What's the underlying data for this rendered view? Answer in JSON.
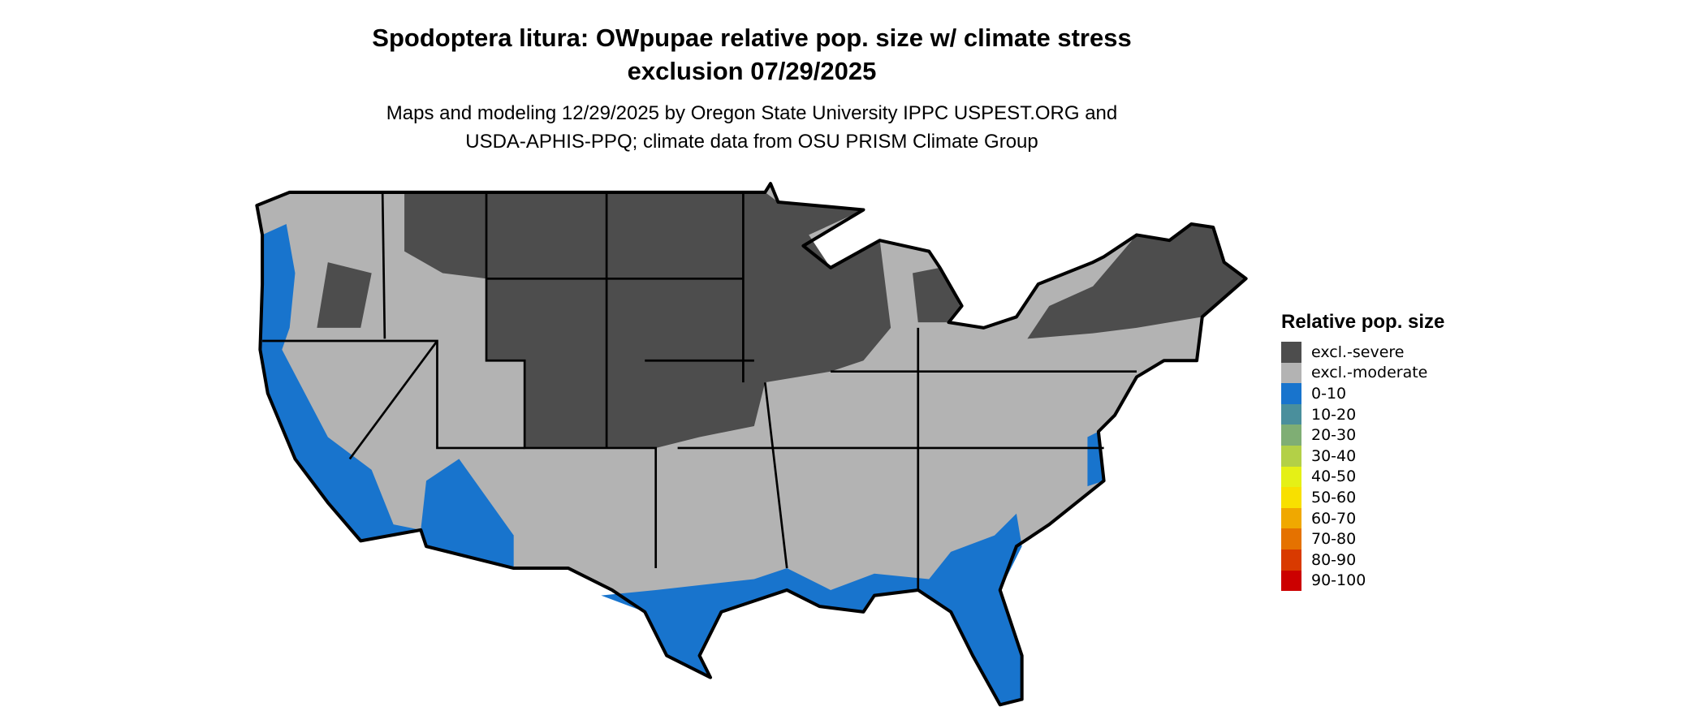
{
  "title": {
    "line1": "Spodoptera litura: OWpupae relative pop. size w/ climate stress",
    "line2": "exclusion 07/29/2025"
  },
  "subtitle": {
    "line1": "Maps and modeling 12/29/2025 by Oregon State University IPPC USPEST.ORG and",
    "line2": "USDA-APHIS-PPQ; climate data from OSU PRISM Climate Group"
  },
  "legend": {
    "title": "Relative pop. size",
    "items": [
      {
        "label": "excl.-severe",
        "color": "#4d4d4d"
      },
      {
        "label": "excl.-moderate",
        "color": "#b3b3b3"
      },
      {
        "label": "0-10",
        "color": "#1874cd"
      },
      {
        "label": "10-20",
        "color": "#4a8f9c"
      },
      {
        "label": "20-30",
        "color": "#7fae74"
      },
      {
        "label": "30-40",
        "color": "#b3d047"
      },
      {
        "label": "40-50",
        "color": "#e5f016"
      },
      {
        "label": "50-60",
        "color": "#f8e000"
      },
      {
        "label": "60-70",
        "color": "#f0a800"
      },
      {
        "label": "70-80",
        "color": "#e57200"
      },
      {
        "label": "80-90",
        "color": "#d93a00"
      },
      {
        "label": "90-100",
        "color": "#cc0000"
      }
    ]
  },
  "map": {
    "region": "Conterminous United States",
    "dominant_categories": [
      "excl.-severe",
      "excl.-moderate",
      "0-10"
    ]
  }
}
